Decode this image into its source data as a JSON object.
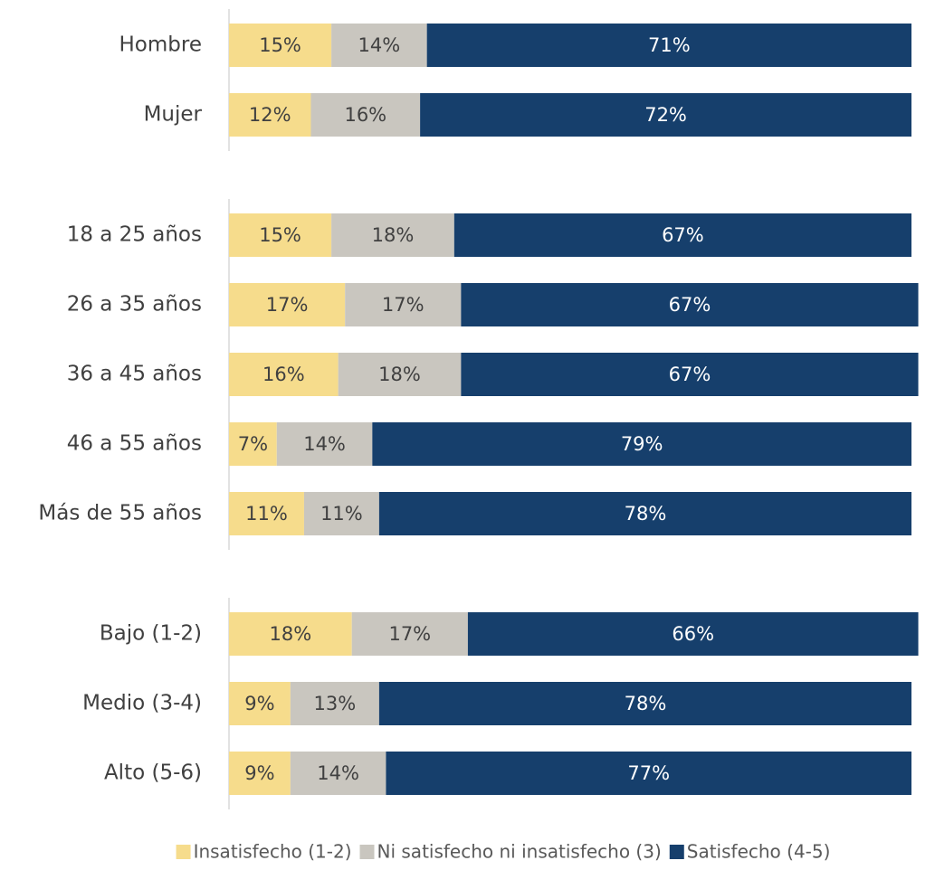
{
  "chart_data": {
    "type": "stacked-bar-horizontal",
    "categories": [
      "Hombre",
      "Mujer",
      null,
      "18 a 25 años",
      "26 a 35 años",
      "36 a 45 años",
      "46 a 55 años",
      "Más de 55 años",
      null,
      "Bajo (1-2)",
      "Medio (3-4)",
      "Alto (5-6)"
    ],
    "series": [
      {
        "name": "Insatisfecho (1-2)",
        "color": "#f6dc8c",
        "label_color": "#404040",
        "values": [
          15,
          12,
          null,
          15,
          17,
          16,
          7,
          11,
          null,
          18,
          9,
          9
        ],
        "value_labels": [
          "15%",
          "12%",
          null,
          "15%",
          "17%",
          "16%",
          "7%",
          "11%",
          null,
          "18%",
          "9%",
          "9%"
        ]
      },
      {
        "name": "Ni satisfecho ni insatisfecho (3)",
        "color": "#c9c6bf",
        "label_color": "#404040",
        "values": [
          14,
          16,
          null,
          18,
          17,
          18,
          14,
          11,
          null,
          17,
          13,
          14
        ],
        "value_labels": [
          "14%",
          "16%",
          null,
          "18%",
          "17%",
          "18%",
          "14%",
          "11%",
          null,
          "17%",
          "13%",
          "14%"
        ]
      },
      {
        "name": "Satisfecho (4-5)",
        "color": "#163f6c",
        "label_color": "#ffffff",
        "values": [
          71,
          72,
          null,
          67,
          67,
          67,
          79,
          78,
          null,
          66,
          78,
          77
        ],
        "value_labels": [
          "71%",
          "72%",
          null,
          "67%",
          "67%",
          "67%",
          "79%",
          "78%",
          null,
          "66%",
          "78%",
          "77%"
        ]
      }
    ],
    "xlim": [
      0,
      100
    ],
    "legend": "bottom"
  }
}
